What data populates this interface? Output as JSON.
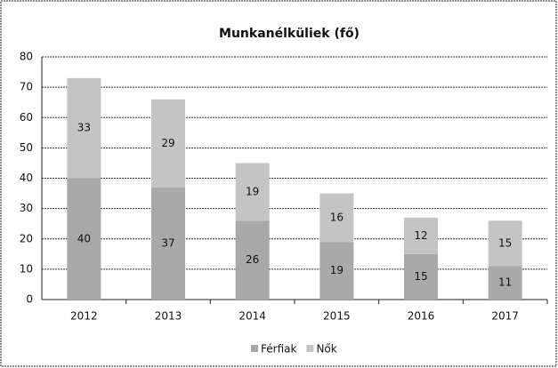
{
  "chart_data": {
    "type": "stacked_bar",
    "title": "Munkanélküliek (fő)",
    "categories": [
      "2012",
      "2013",
      "2014",
      "2015",
      "2016",
      "2017"
    ],
    "series": [
      {
        "name": "Férfiak",
        "color": "#a9a9a9",
        "values": [
          40,
          37,
          26,
          19,
          15,
          11
        ]
      },
      {
        "name": "Nők",
        "color": "#c4c4c4",
        "values": [
          33,
          29,
          19,
          16,
          12,
          15
        ]
      }
    ],
    "ylim": [
      0,
      80
    ],
    "yticks": [
      0,
      10,
      20,
      30,
      40,
      50,
      60,
      70,
      80
    ],
    "grid": true,
    "legend": "bottom"
  }
}
